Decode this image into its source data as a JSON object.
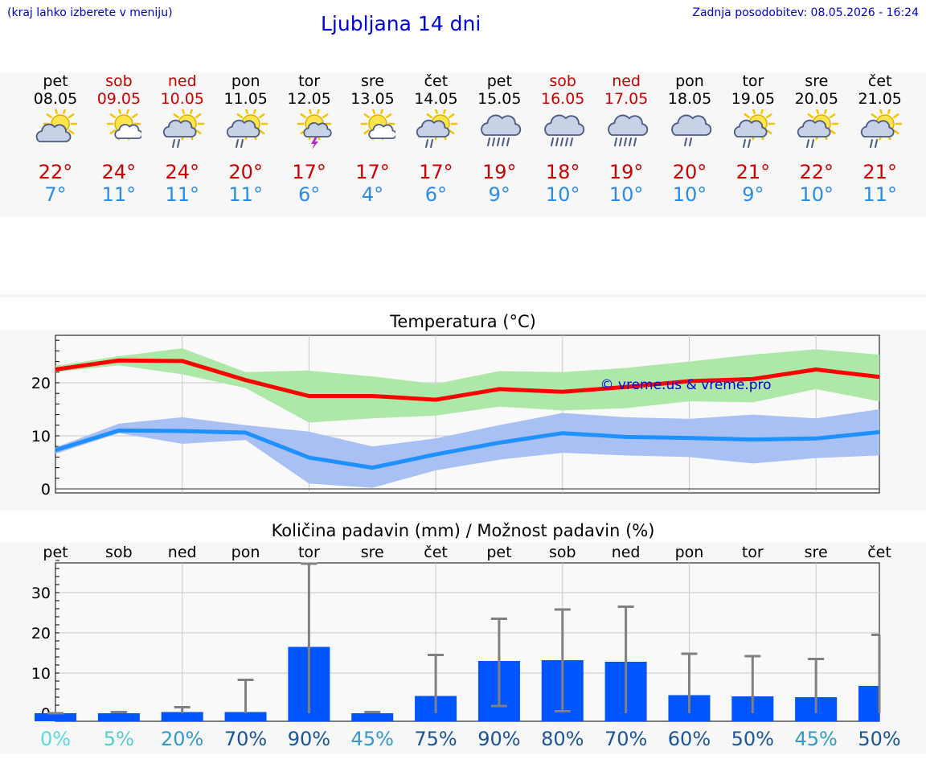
{
  "header": {
    "hint": "(kraj lahko izberete v meniju)",
    "title": "Ljubljana 14 dni",
    "updated": "Zadnja posodobitev: 08.05.2026 - 16:24"
  },
  "days": [
    {
      "name": "pet",
      "date": "08.05",
      "weekend": false,
      "icon": "partly-cloudy-icon",
      "hi": "22°",
      "lo": "7°"
    },
    {
      "name": "sob",
      "date": "09.05",
      "weekend": true,
      "icon": "sun-cloud-icon",
      "hi": "24°",
      "lo": "11°"
    },
    {
      "name": "ned",
      "date": "10.05",
      "weekend": true,
      "icon": "sun-cloud-rain-icon",
      "hi": "24°",
      "lo": "11°"
    },
    {
      "name": "pon",
      "date": "11.05",
      "weekend": false,
      "icon": "sun-cloud-rain-icon",
      "hi": "20°",
      "lo": "11°"
    },
    {
      "name": "tor",
      "date": "12.05",
      "weekend": false,
      "icon": "sun-storm-icon",
      "hi": "17°",
      "lo": "6°"
    },
    {
      "name": "sre",
      "date": "13.05",
      "weekend": false,
      "icon": "sun-cloud-icon",
      "hi": "17°",
      "lo": "4°"
    },
    {
      "name": "čet",
      "date": "14.05",
      "weekend": false,
      "icon": "sun-cloud-rain-icon",
      "hi": "17°",
      "lo": "6°"
    },
    {
      "name": "pet",
      "date": "15.05",
      "weekend": false,
      "icon": "heavy-rain-icon",
      "hi": "19°",
      "lo": "9°"
    },
    {
      "name": "sob",
      "date": "16.05",
      "weekend": true,
      "icon": "heavy-rain-icon",
      "hi": "18°",
      "lo": "10°"
    },
    {
      "name": "ned",
      "date": "17.05",
      "weekend": true,
      "icon": "heavy-rain-icon",
      "hi": "19°",
      "lo": "10°"
    },
    {
      "name": "pon",
      "date": "18.05",
      "weekend": false,
      "icon": "cloud-rain-icon",
      "hi": "20°",
      "lo": "10°"
    },
    {
      "name": "tor",
      "date": "19.05",
      "weekend": false,
      "icon": "sun-cloud-rain-icon",
      "hi": "21°",
      "lo": "9°"
    },
    {
      "name": "sre",
      "date": "20.05",
      "weekend": false,
      "icon": "sun-cloud-rain-icon",
      "hi": "22°",
      "lo": "10°"
    },
    {
      "name": "čet",
      "date": "21.05",
      "weekend": false,
      "icon": "sun-cloud-rain-icon",
      "hi": "21°",
      "lo": "11°"
    }
  ],
  "chart_data": [
    {
      "type": "line",
      "title": "Temperatura (°C)",
      "ylim": [
        0,
        29
      ],
      "y_ticks": [
        "0",
        "10",
        "20"
      ],
      "grid": true,
      "watermark": "© vreme.us & vreme.pro",
      "series": [
        {
          "color": "#ff0000",
          "band_color": "#aee8a8",
          "values": [
            22.5,
            24.2,
            24.1,
            20.5,
            17.5,
            17.5,
            16.8,
            18.8,
            18.3,
            19.2,
            20.3,
            20.7,
            22.5,
            21.1
          ],
          "band_low": [
            22.0,
            23.3,
            21.6,
            19.0,
            12.5,
            13.3,
            13.8,
            15.5,
            14.8,
            15.2,
            16.5,
            16.3,
            18.8,
            16.5
          ],
          "band_high": [
            23.2,
            25.0,
            26.5,
            22.0,
            22.3,
            21.2,
            19.8,
            22.2,
            22.0,
            22.8,
            24.0,
            25.3,
            26.3,
            25.3
          ]
        },
        {
          "color": "#1e90ff",
          "band_color": "#a9c0f5",
          "values": [
            7.3,
            11.0,
            10.9,
            10.6,
            5.9,
            4.0,
            6.5,
            8.7,
            10.5,
            9.8,
            9.6,
            9.3,
            9.5,
            10.7
          ],
          "band_low": [
            6.6,
            10.5,
            8.5,
            9.2,
            1.0,
            0.2,
            3.5,
            5.5,
            6.8,
            6.3,
            6.0,
            4.8,
            5.8,
            6.3
          ],
          "band_high": [
            7.8,
            12.3,
            13.5,
            12.0,
            10.8,
            8.0,
            9.5,
            12.0,
            14.3,
            13.5,
            13.2,
            14.0,
            13.3,
            15.0
          ]
        }
      ]
    },
    {
      "type": "bar",
      "title": "Količina padavin (mm) / Možnost padavin (%)",
      "categories": [
        "pet",
        "sob",
        "ned",
        "pon",
        "tor",
        "sre",
        "čet",
        "pet",
        "sob",
        "ned",
        "pon",
        "tor",
        "sre",
        "čet"
      ],
      "ylim": [
        -1,
        39
      ],
      "y_ticks": [
        "0",
        "10",
        "20",
        "30"
      ],
      "grid": true,
      "bar_color": "#0055ff",
      "error_color": "#808080",
      "values": [
        0,
        0,
        0.3,
        0.3,
        16.5,
        0,
        4.3,
        13.0,
        13.2,
        12.8,
        4.5,
        4.2,
        4.0,
        6.8
      ],
      "err_low": [
        0,
        0,
        0,
        0,
        0,
        0,
        0,
        1.8,
        0.5,
        0,
        0,
        0,
        0,
        0
      ],
      "err_high": [
        0,
        0.3,
        1.5,
        8.3,
        37.2,
        0.3,
        14.5,
        23.5,
        25.8,
        26.5,
        14.8,
        14.2,
        13.5,
        19.5
      ],
      "chance": [
        "0%",
        "5%",
        "20%",
        "70%",
        "90%",
        "45%",
        "75%",
        "90%",
        "80%",
        "70%",
        "60%",
        "50%",
        "45%",
        "50%"
      ],
      "chance_colors": [
        "#55dddd",
        "#55cccc",
        "#3399cc",
        "#1a5599",
        "#1a5599",
        "#3399cc",
        "#1a5599",
        "#1a5599",
        "#1a5599",
        "#1a5599",
        "#1a5599",
        "#1a5599",
        "#3399cc",
        "#1a5599"
      ]
    }
  ]
}
